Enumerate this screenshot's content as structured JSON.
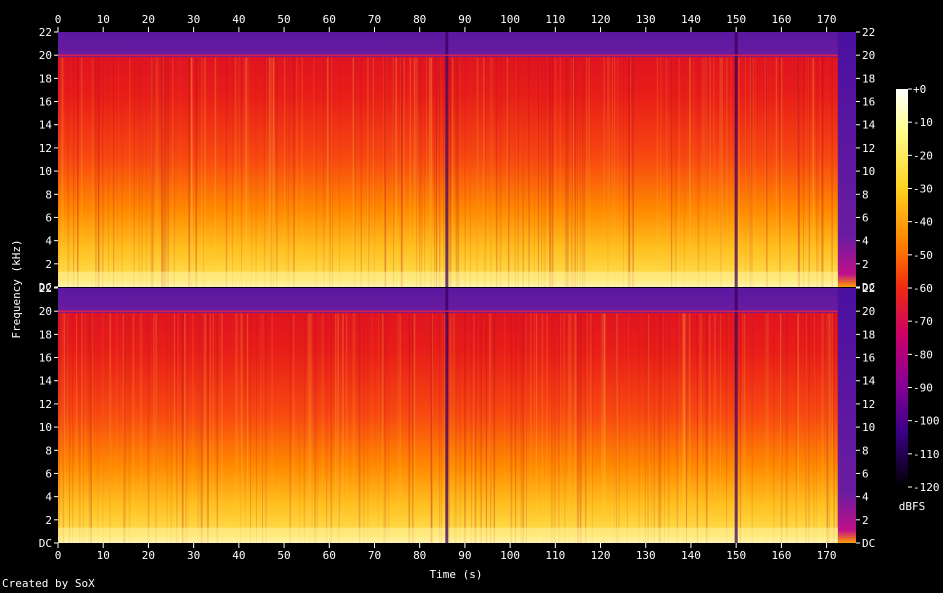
{
  "chart_data": {
    "type": "heatmap",
    "title": "",
    "xlabel": "Time (s)",
    "ylabel": "Frequency (kHz)",
    "colorbar_label": "dBFS",
    "x_ticks": [
      "0",
      "10",
      "20",
      "30",
      "40",
      "50",
      "60",
      "70",
      "80",
      "90",
      "100",
      "110",
      "120",
      "130",
      "140",
      "150",
      "160",
      "170"
    ],
    "y_ticks": [
      "DC",
      "2",
      "4",
      "6",
      "8",
      "10",
      "12",
      "14",
      "16",
      "18",
      "20",
      "22"
    ],
    "colorbar_ticks": [
      "+0",
      "-10",
      "-20",
      "-30",
      "-40",
      "-50",
      "-60",
      "-70",
      "-80",
      "-90",
      "-100",
      "-110",
      "-120"
    ],
    "xlim": [
      0,
      176.5
    ],
    "ylim": [
      0,
      22
    ],
    "zlim": [
      -120,
      0
    ],
    "channels": 2,
    "dark_lines_s": [
      86,
      150
    ],
    "track_end_s": 172.5,
    "lowpass_khz": 20,
    "colors": [
      "#000000",
      "#1a0070",
      "#5a0090",
      "#a0008a",
      "#dd1030",
      "#ff5000",
      "#ffa000",
      "#ffe040",
      "#ffffff"
    ]
  },
  "footer": {
    "credit": "Created by SoX"
  }
}
